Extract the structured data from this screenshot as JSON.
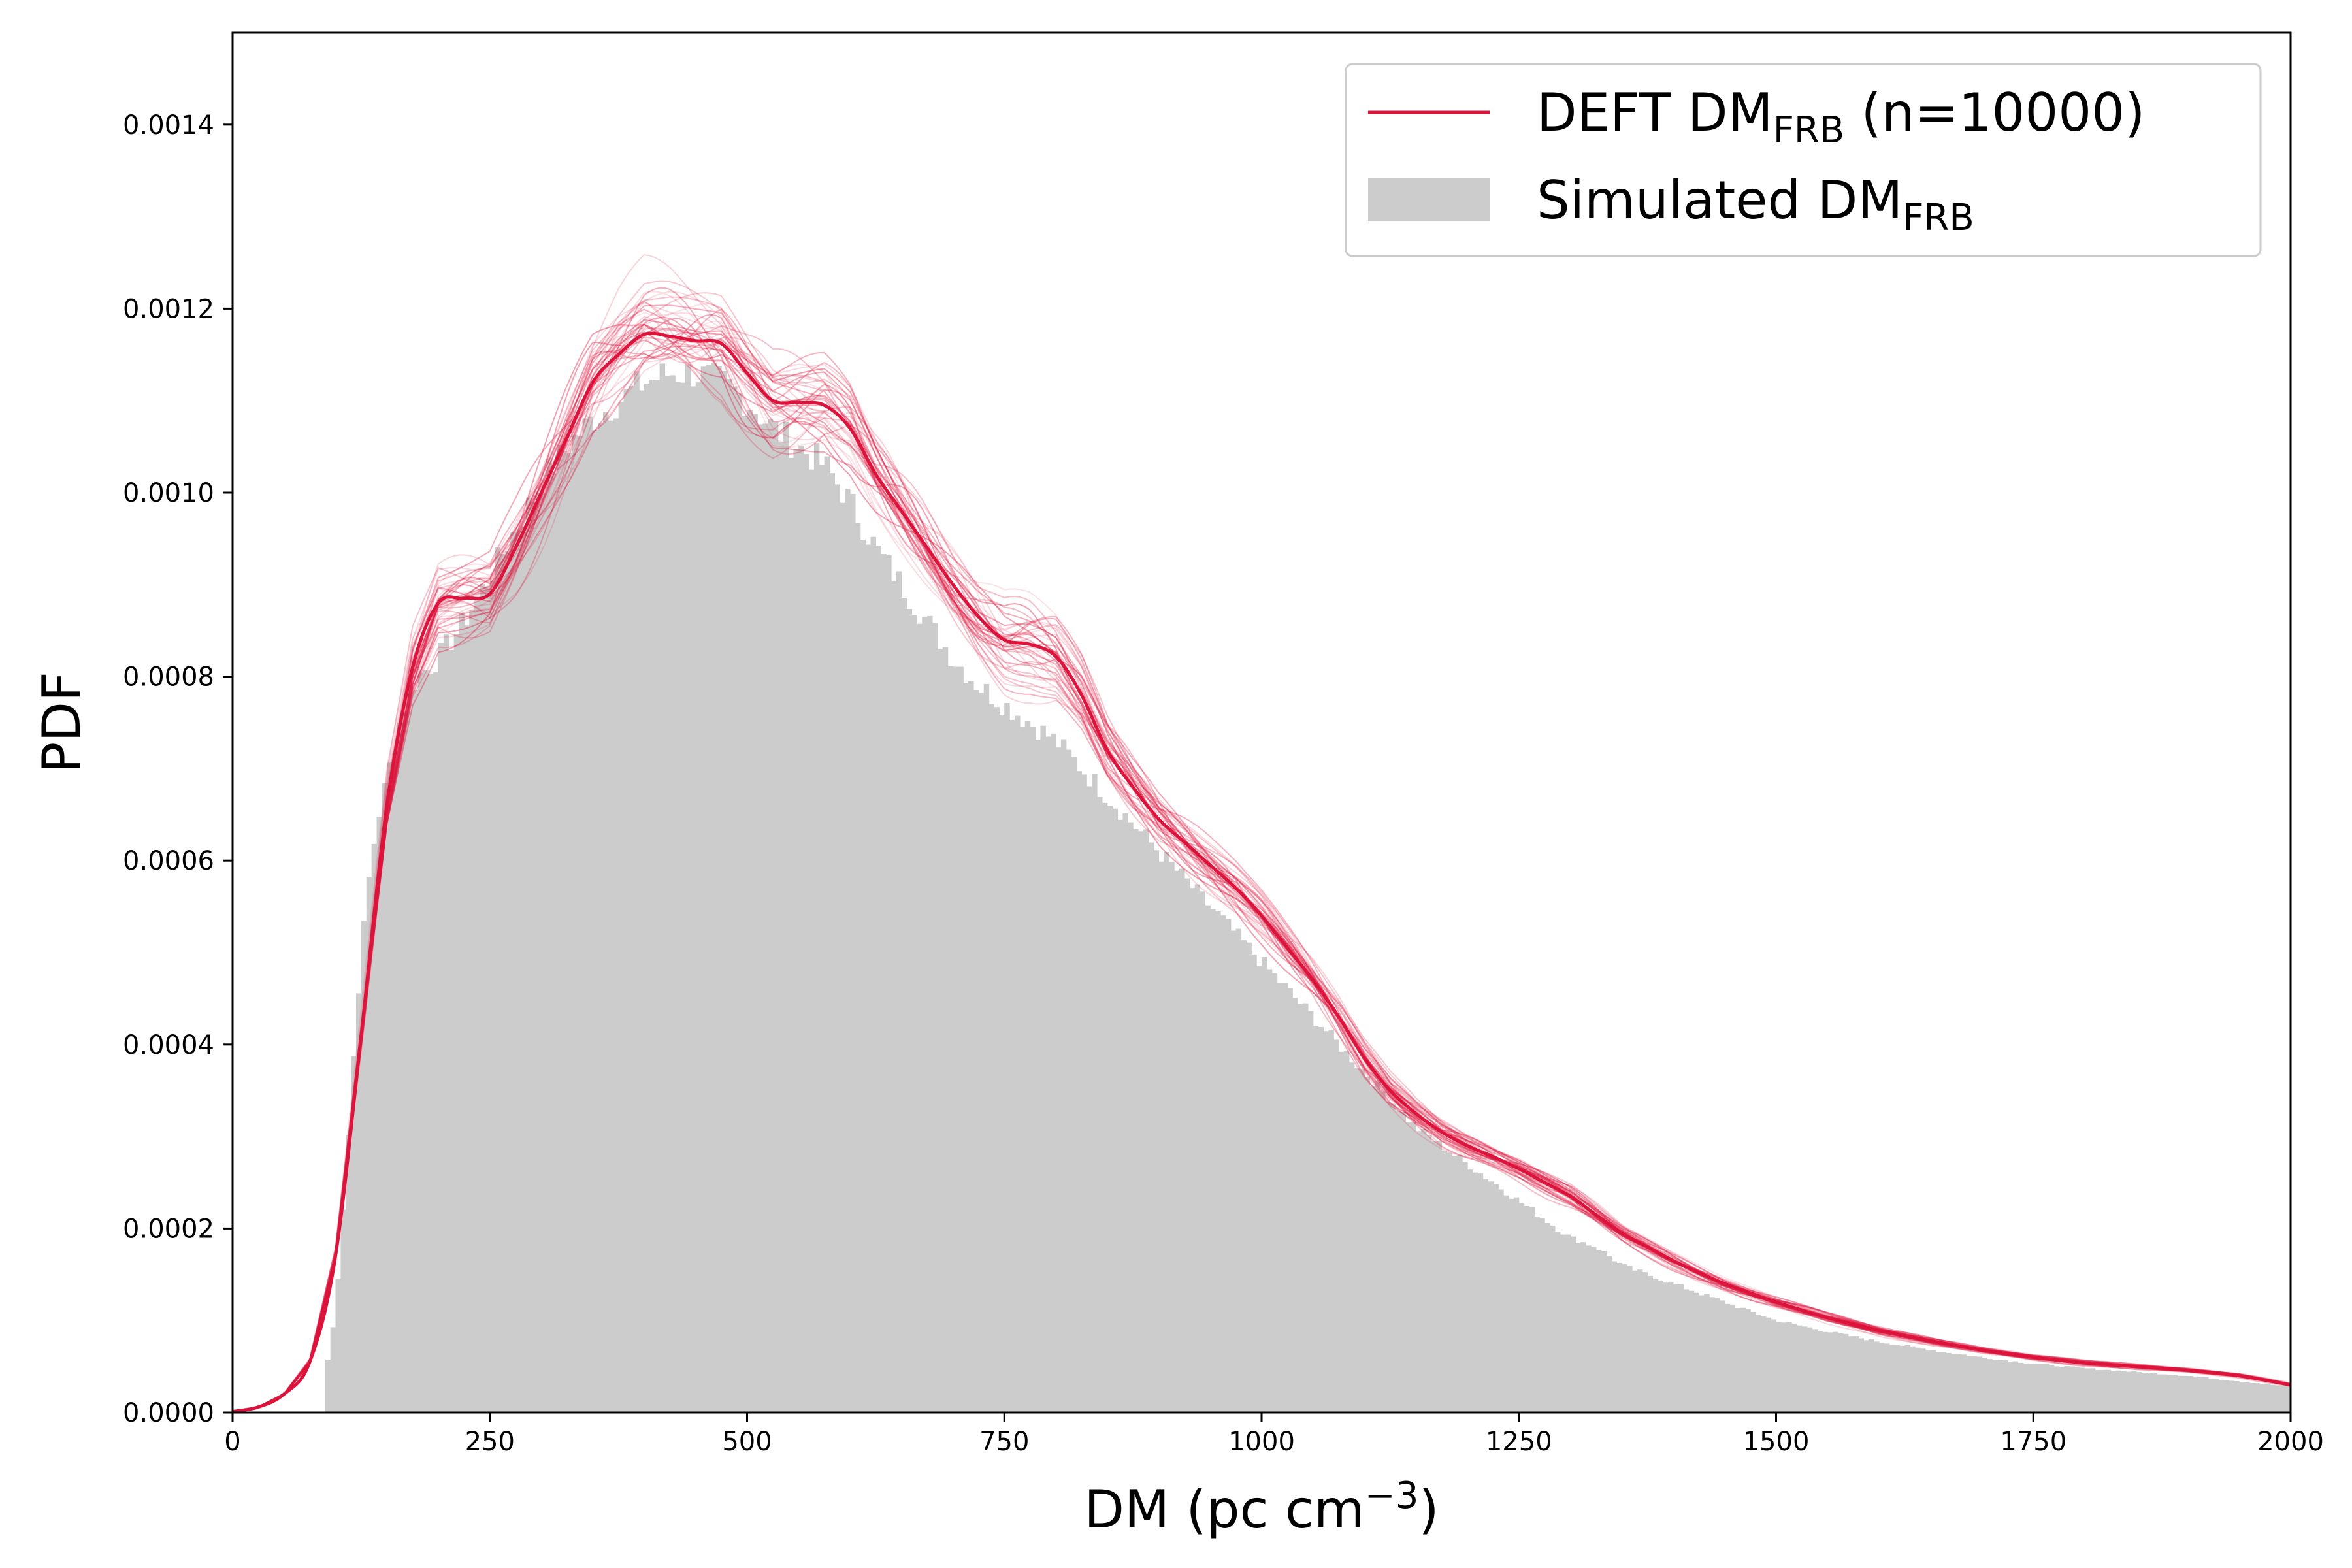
{
  "chart_data": {
    "type": "area",
    "xlabel": "DM (pc cm",
    "xlabel_sup": "−3",
    "xlabel_close": ")",
    "ylabel": "PDF",
    "xlim": [
      0,
      2000
    ],
    "ylim": [
      0,
      0.0015
    ],
    "x_ticks": [
      "0",
      "250",
      "500",
      "750",
      "1000",
      "1250",
      "1500",
      "1750",
      "2000"
    ],
    "y_ticks": [
      "0.0000",
      "0.0002",
      "0.0004",
      "0.0006",
      "0.0008",
      "0.0010",
      "0.0012",
      "0.0014"
    ],
    "grid": false,
    "legend_position": "top-right",
    "legend": [
      {
        "main": "DEFT DM",
        "sub": "FRB",
        "tail": " (n=10000)",
        "kind": "line",
        "color": "#dc143c"
      },
      {
        "main": "Simulated DM",
        "sub": "FRB",
        "tail": "",
        "kind": "patch",
        "color": "#cccccc"
      }
    ],
    "series": [
      {
        "name": "DEFT DM_FRB (n=10000)",
        "kind": "line",
        "color": "#dc143c",
        "x": [
          0,
          25,
          50,
          75,
          100,
          125,
          150,
          175,
          200,
          225,
          250,
          275,
          300,
          325,
          350,
          375,
          400,
          425,
          450,
          475,
          500,
          525,
          550,
          575,
          600,
          625,
          650,
          675,
          700,
          725,
          750,
          775,
          800,
          825,
          850,
          875,
          900,
          925,
          950,
          975,
          1000,
          1025,
          1050,
          1075,
          1100,
          1125,
          1150,
          1175,
          1200,
          1225,
          1250,
          1275,
          1300,
          1325,
          1350,
          1375,
          1400,
          1425,
          1450,
          1475,
          1500,
          1550,
          1600,
          1650,
          1700,
          1750,
          1800,
          1850,
          1900,
          1950,
          2000
        ],
        "y": [
          1e-06,
          6e-06,
          2e-05,
          5.5e-05,
          0.00017,
          0.00041,
          0.00066,
          0.00081,
          0.00088,
          0.000885,
          0.00089,
          0.00094,
          0.001,
          0.00106,
          0.00112,
          0.00115,
          0.001172,
          0.00117,
          0.001165,
          0.001162,
          0.00113,
          0.0011,
          0.001098,
          0.001095,
          0.00107,
          0.00102,
          0.00098,
          0.00094,
          0.0009,
          0.000865,
          0.00084,
          0.000835,
          0.000822,
          0.00078,
          0.00072,
          0.00068,
          0.000645,
          0.00062,
          0.000595,
          0.00057,
          0.00054,
          0.000505,
          0.00047,
          0.00043,
          0.000385,
          0.00035,
          0.000325,
          0.000305,
          0.00029,
          0.000278,
          0.000265,
          0.00025,
          0.000235,
          0.000215,
          0.000195,
          0.00018,
          0.000165,
          0.000152,
          0.00014,
          0.00013,
          0.00012,
          0.000103,
          8.9e-05,
          7.8e-05,
          6.8e-05,
          6e-05,
          5.4e-05,
          5e-05,
          4.6e-05,
          4e-05,
          3e-05
        ]
      },
      {
        "name": "Simulated DM_FRB",
        "kind": "histogram",
        "color": "#cccccc",
        "x": [
          90,
          100,
          110,
          120,
          130,
          140,
          150,
          160,
          170,
          180,
          200,
          225,
          250,
          275,
          300,
          325,
          350,
          375,
          400,
          425,
          450,
          475,
          500,
          525,
          550,
          575,
          600,
          625,
          650,
          675,
          700,
          725,
          750,
          775,
          800,
          825,
          850,
          875,
          900,
          925,
          950,
          975,
          1000,
          1025,
          1050,
          1075,
          1100,
          1125,
          1150,
          1175,
          1200,
          1225,
          1250,
          1275,
          1300,
          1325,
          1350,
          1375,
          1400,
          1425,
          1450,
          1475,
          1500,
          1550,
          1600,
          1650,
          1700,
          1750,
          1800,
          1850,
          1900,
          1950,
          2000
        ],
        "y": [
          4e-05,
          0.00011,
          0.00026,
          0.00043,
          0.00056,
          0.00064,
          0.00069,
          0.00074,
          0.00078,
          0.0008,
          0.00082,
          0.00086,
          0.00091,
          0.00096,
          0.00101,
          0.00105,
          0.00108,
          0.0011,
          0.00112,
          0.00113,
          0.00113,
          0.00112,
          0.0011,
          0.00107,
          0.00105,
          0.00103,
          0.00099,
          0.00094,
          0.0009,
          0.00086,
          0.00082,
          0.00079,
          0.00077,
          0.00075,
          0.00073,
          0.0007,
          0.00067,
          0.00064,
          0.00061,
          0.00058,
          0.00055,
          0.00052,
          0.00049,
          0.00046,
          0.00043,
          0.0004,
          0.00037,
          0.00034,
          0.00031,
          0.00029,
          0.00027,
          0.00025,
          0.00023,
          0.00021,
          0.00019,
          0.00018,
          0.00016,
          0.00015,
          0.00014,
          0.00013,
          0.00012,
          0.00011,
          0.0001,
          8.8e-05,
          7.7e-05,
          6.8e-05,
          6e-05,
          5.3e-05,
          4.8e-05,
          4.4e-05,
          4e-05,
          3.4e-05,
          2.8e-05
        ]
      }
    ]
  }
}
